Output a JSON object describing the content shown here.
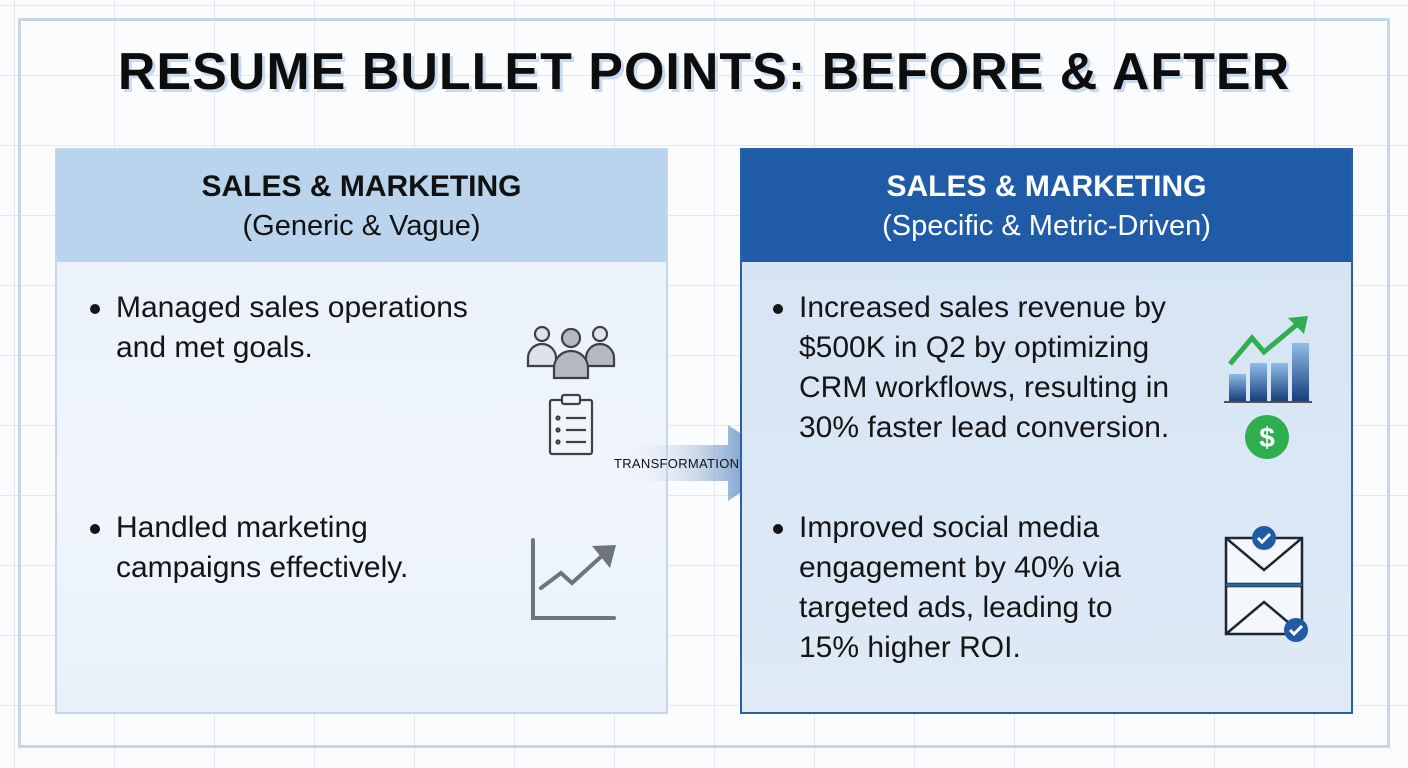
{
  "title": "RESUME BULLET POINTS: BEFORE & AFTER",
  "before": {
    "heading": "SALES & MARKETING",
    "subheading": "(Generic & Vague)",
    "bullets": [
      {
        "lines": [
          "Managed sales operations",
          "and met goals."
        ],
        "icons": [
          "people-icon",
          "clipboard-list-icon"
        ]
      },
      {
        "lines": [
          "Handled marketing",
          "campaigns effectively."
        ],
        "icons": [
          "line-chart-icon"
        ]
      }
    ]
  },
  "transition": {
    "label": "TRANSFORMATION"
  },
  "after": {
    "heading": "SALES & MARKETING",
    "subheading": "(Specific & Metric-Driven)",
    "bullets": [
      {
        "lines": [
          "Increased sales revenue by",
          "$500K in Q2 by optimizing",
          "CRM workflows, resulting in",
          "30% faster lead conversion."
        ],
        "icons": [
          "growth-bar-chart-icon",
          "dollar-icon"
        ]
      },
      {
        "lines": [
          "Improved social media",
          "engagement by 40% via",
          "targeted ads, leading to",
          "15% higher ROI."
        ],
        "icons": [
          "email-check-icon"
        ]
      }
    ]
  },
  "colors": {
    "accent": "#1f5ba6",
    "green": "#2eae4f",
    "light_header": "#b9d4ec"
  }
}
